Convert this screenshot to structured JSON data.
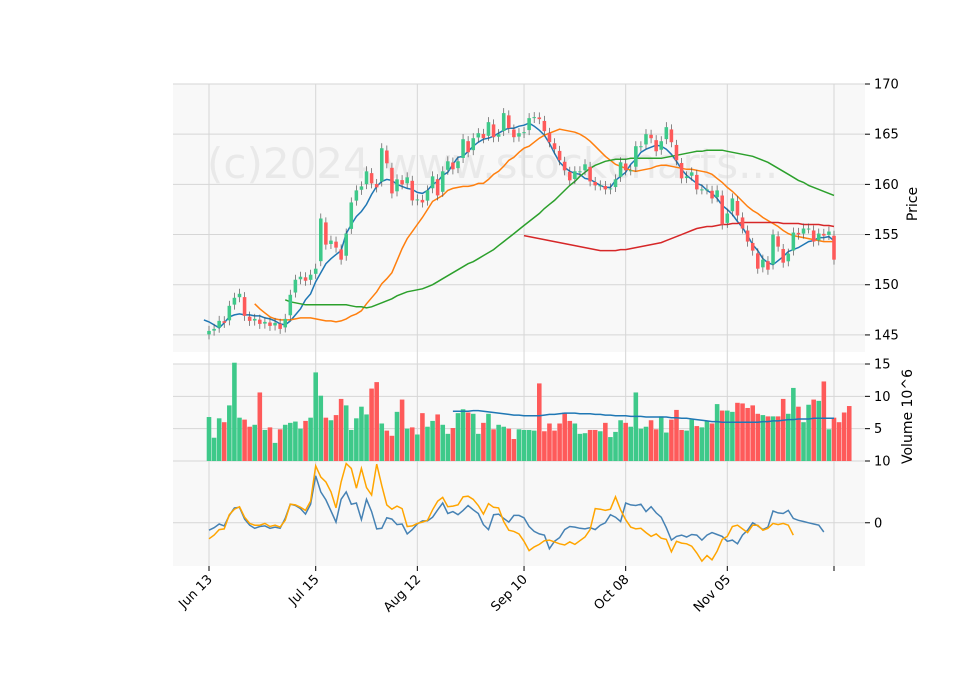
{
  "watermark": "(c)2024 www.stockcharts...",
  "colors": {
    "up": "#3ec98a",
    "down": "#fe5a5a",
    "sma5": "#1f77b4",
    "sma10": "#ff7f0e",
    "sma30": "#2ca02c",
    "sma120": "#d62728",
    "macd": "#4682b4",
    "signal": "#ffa500",
    "panel_bg": "#f8f8f8",
    "grid": "#d6d6d6"
  },
  "chart_data": [
    {
      "type": "candlestick",
      "panel": "price",
      "ylabel": "Price",
      "ylim": [
        143.3,
        170
      ],
      "yticks": [
        145,
        150,
        155,
        160,
        165,
        170
      ],
      "grid": true,
      "x_tick_labels": [
        "Jun 13",
        "Jul 15",
        "Aug 12",
        "Sep 10",
        "Oct 08",
        "Nov 05",
        ""
      ],
      "x_tick_index": [
        0,
        21,
        41,
        62,
        82,
        102,
        123
      ],
      "close": [
        145.4,
        145.6,
        146.4,
        146.2,
        147.9,
        148.7,
        149.1,
        146.9,
        146.4,
        146.6,
        146.1,
        146.3,
        145.9,
        146.2,
        145.6,
        146.6,
        149.0,
        150.5,
        150.8,
        150.4,
        151.0,
        151.6,
        156.6,
        154.0,
        154.4,
        153.7,
        152.5,
        155.1,
        158.2,
        159.4,
        159.8,
        161.3,
        160.1,
        159.7,
        163.6,
        162.1,
        159.1,
        160.5,
        160.0,
        160.7,
        158.4,
        158.5,
        158.2,
        159.4,
        160.8,
        158.9,
        161.3,
        162.3,
        161.5,
        162.3,
        164.5,
        163.2,
        164.6,
        165.1,
        164.6,
        166.2,
        164.7,
        165.0,
        167.1,
        165.6,
        164.7,
        165.1,
        165.2,
        166.6,
        166.7,
        166.5,
        165.3,
        164.2,
        163.5,
        162.4,
        161.4,
        160.4,
        161.3,
        161.3,
        162.0,
        160.3,
        159.9,
        159.9,
        159.5,
        159.6,
        160.5,
        162.2,
        161.4,
        161.4,
        163.8,
        163.8,
        165.0,
        164.6,
        163.3,
        164.3,
        165.7,
        164.2,
        162.4,
        160.6,
        160.8,
        161.2,
        159.5,
        159.5,
        159.5,
        158.6,
        159.4,
        156.0,
        157.1,
        158.6,
        156.9,
        155.6,
        154.3,
        153.4,
        151.6,
        152.5,
        151.5,
        155.0,
        153.8,
        152.2,
        153.1,
        155.2,
        155.0,
        155.6,
        155.6,
        154.3,
        155.1,
        154.9,
        155.3,
        152.5
      ],
      "volume_millions": [
        6.8,
        3.6,
        6.6,
        6.0,
        8.6,
        15.2,
        6.7,
        6.4,
        5.3,
        5.6,
        10.6,
        4.8,
        5.2,
        2.8,
        4.9,
        5.6,
        5.9,
        6.1,
        5.0,
        6.2,
        6.7,
        13.7,
        10.1,
        6.7,
        6.3,
        7.1,
        9.6,
        8.6,
        4.8,
        6.6,
        8.4,
        7.2,
        11.2,
        12.2,
        5.8,
        4.7,
        3.9,
        7.6,
        9.5,
        5.0,
        5.2,
        4.1,
        7.4,
        5.3,
        6.2,
        7.2,
        5.6,
        4.2,
        5.1,
        7.4,
        8.0,
        7.5,
        7.3,
        4.2,
        5.9,
        7.3,
        4.9,
        5.6,
        5.3,
        5.0,
        3.4,
        4.9,
        4.8,
        4.8,
        4.7,
        12.0,
        4.6,
        5.8,
        4.7,
        5.8,
        7.5,
        6.2,
        5.8,
        4.2,
        4.3,
        4.8,
        4.8,
        4.6,
        5.9,
        3.7,
        4.5,
        6.3,
        5.9,
        5.3,
        10.6,
        5.0,
        5.3,
        6.3,
        4.9,
        6.9,
        4.4,
        6.4,
        7.9,
        4.8,
        4.7,
        6.4,
        5.4,
        5.2,
        6.2,
        5.8,
        8.8,
        7.8,
        7.8,
        7.6,
        9.0,
        8.9,
        8.2,
        8.6,
        7.3,
        7.1,
        6.9,
        6.9,
        6.9,
        9.6,
        7.3,
        11.3,
        8.4,
        6.0,
        8.7,
        9.5,
        9.3,
        12.3,
        4.9,
        6.7,
        6.0,
        7.5,
        8.5
      ],
      "series": [
        {
          "name": "",
          "key": "sma5",
          "values": [
            146.5,
            146.3,
            146.0,
            145.7,
            146.2,
            146.8,
            147.0,
            147.1,
            147.0,
            147.0,
            146.9,
            146.9,
            146.7,
            146.6,
            146.4,
            146.1,
            146.0,
            146.4,
            147.0,
            147.6,
            148.5,
            149.1,
            150.3,
            151.2,
            152.1,
            152.6,
            153.0,
            153.4,
            155.1,
            156.0,
            156.8,
            157.3,
            158.0,
            159.0,
            159.8,
            160.3,
            160.5,
            160.4,
            160.0,
            159.8,
            159.6,
            159.5,
            159.2,
            159.1,
            159.4,
            160.0,
            160.3,
            160.9,
            161.2,
            162.0,
            162.7,
            162.8,
            163.3,
            163.8,
            164.2,
            164.5,
            164.6,
            164.8,
            165.1,
            165.4,
            165.6,
            165.6,
            165.8,
            165.9,
            166.1,
            165.8,
            165.4,
            164.9,
            164.1,
            163.1,
            162.2,
            161.7,
            161.3,
            161.1,
            161.0,
            160.6,
            160.5,
            160.2,
            159.9,
            159.7,
            159.7,
            160.4,
            160.8,
            161.2,
            162.0,
            162.5,
            163.2,
            163.5,
            163.7,
            163.9,
            163.8,
            163.5,
            163.0,
            162.3,
            161.5,
            160.9,
            160.5,
            160.1,
            159.9,
            159.4,
            159.1,
            158.6,
            157.9,
            157.5,
            157.0,
            156.3,
            155.7,
            154.9,
            154.0,
            153.4,
            152.6,
            152.2,
            152.0,
            152.4,
            152.8,
            153.3,
            153.5,
            153.7,
            154.0,
            154.3,
            154.4,
            154.7,
            154.7,
            154.8,
            154.4
          ]
        },
        {
          "name": "",
          "key": "sma10",
          "values": [
            148.1,
            147.6,
            147.2,
            146.8,
            146.6,
            146.5,
            146.5,
            146.5,
            146.6,
            146.7,
            146.7,
            146.7,
            146.6,
            146.5,
            146.4,
            146.4,
            146.3,
            146.4,
            146.6,
            146.9,
            147.1,
            147.4,
            148.1,
            148.7,
            149.3,
            150.1,
            150.6,
            151.2,
            152.4,
            153.6,
            154.6,
            155.3,
            156.0,
            156.7,
            157.5,
            158.3,
            158.6,
            158.9,
            159.4,
            159.6,
            159.7,
            159.8,
            159.8,
            159.9,
            160.1,
            160.1,
            160.5,
            161.0,
            161.3,
            161.8,
            162.4,
            162.7,
            163.2,
            163.6,
            163.8,
            164.2,
            164.6,
            164.9,
            165.1,
            165.3,
            165.5,
            165.4,
            165.3,
            165.2,
            165.0,
            164.7,
            164.3,
            163.8,
            163.3,
            162.8,
            162.4,
            162.0,
            161.8,
            161.6,
            161.4,
            161.3,
            161.4,
            161.5,
            161.6,
            161.8,
            161.9,
            161.9,
            161.8,
            161.7,
            161.6,
            161.5,
            161.5,
            161.4,
            161.3,
            161.2,
            161.0,
            160.6,
            160.2,
            159.7,
            159.3,
            158.8,
            158.3,
            157.8,
            157.4,
            157.1,
            156.7,
            156.4,
            156.1,
            155.8,
            155.4,
            155.1,
            154.9,
            154.8,
            154.7,
            154.6,
            154.5,
            154.4,
            154.3,
            154.3,
            154.3
          ]
        },
        {
          "name": "",
          "key": "sma30",
          "values": [
            148.5,
            148.3,
            148.2,
            148.1,
            148.0,
            148.0,
            148.0,
            148.0,
            148.0,
            148.0,
            148.0,
            148.0,
            148.0,
            147.9,
            147.8,
            147.8,
            147.7,
            147.8,
            148.0,
            148.2,
            148.4,
            148.6,
            148.9,
            149.1,
            149.3,
            149.4,
            149.5,
            149.6,
            149.8,
            150.0,
            150.3,
            150.6,
            150.9,
            151.2,
            151.5,
            151.8,
            152.1,
            152.3,
            152.6,
            152.9,
            153.2,
            153.5,
            153.9,
            154.3,
            154.7,
            155.1,
            155.5,
            155.9,
            156.3,
            156.7,
            157.1,
            157.6,
            158.0,
            158.4,
            158.9,
            159.4,
            159.9,
            160.3,
            160.8,
            161.2,
            161.6,
            161.9,
            162.1,
            162.3,
            162.4,
            162.5,
            162.5,
            162.5,
            162.6,
            162.6,
            162.6,
            162.6,
            162.6,
            162.6,
            162.6,
            162.7,
            162.8,
            162.9,
            163.0,
            163.1,
            163.2,
            163.3,
            163.3,
            163.4,
            163.4,
            163.4,
            163.4,
            163.3,
            163.2,
            163.1,
            163.0,
            162.9,
            162.8,
            162.6,
            162.4,
            162.2,
            161.9,
            161.6,
            161.3,
            161.0,
            160.7,
            160.4,
            160.2,
            159.9,
            159.7,
            159.5,
            159.3,
            159.1,
            158.9
          ]
        },
        {
          "name": "",
          "key": "sma120",
          "values": [
            154.9,
            154.8,
            154.7,
            154.6,
            154.5,
            154.4,
            154.3,
            154.2,
            154.1,
            154.0,
            153.9,
            153.8,
            153.7,
            153.6,
            153.5,
            153.4,
            153.4,
            153.4,
            153.4,
            153.5,
            153.5,
            153.6,
            153.7,
            153.8,
            153.9,
            154.0,
            154.1,
            154.2,
            154.4,
            154.6,
            154.8,
            155.0,
            155.2,
            155.4,
            155.6,
            155.7,
            155.8,
            155.8,
            155.9,
            156.0,
            156.0,
            156.1,
            156.1,
            156.2,
            156.2,
            156.2,
            156.2,
            156.2,
            156.2,
            156.2,
            156.2,
            156.1,
            156.1,
            156.1,
            156.1,
            156.0,
            156.0,
            156.0,
            156.0,
            155.9,
            155.9,
            155.8
          ]
        },
        {
          "name": "",
          "key": "volume_avg",
          "panel": "volume",
          "values": [
            7.7,
            7.7,
            7.7,
            7.7,
            7.8,
            7.8,
            7.7,
            7.6,
            7.5,
            7.4,
            7.3,
            7.2,
            7.1,
            7.1,
            7.0,
            7.0,
            7.0,
            7.0,
            7.1,
            7.2,
            7.2,
            7.3,
            7.4,
            7.4,
            7.4,
            7.3,
            7.3,
            7.3,
            7.2,
            7.2,
            7.1,
            7.1,
            7.0,
            7.0,
            7.0,
            6.9,
            6.9,
            6.9,
            6.8,
            6.8,
            6.8,
            6.8,
            6.8,
            6.7,
            6.7,
            6.6,
            6.6,
            6.5,
            6.4,
            6.3,
            6.2,
            6.1,
            6.1,
            6.0,
            6.0,
            6.0,
            6.0,
            6.0,
            6.0,
            6.0,
            6.0,
            6.1,
            6.1,
            6.2,
            6.2,
            6.3,
            6.4,
            6.4,
            6.5,
            6.5,
            6.5,
            6.6,
            6.6,
            6.6,
            6.6,
            6.6
          ]
        }
      ]
    },
    {
      "type": "bar",
      "panel": "volume",
      "ylabel": "Volume  10^6",
      "ylim": [
        0,
        15
      ],
      "yticks": [
        5,
        10,
        15
      ]
    },
    {
      "type": "line",
      "panel": "macd",
      "ylim": [
        -7,
        10
      ],
      "yticks": [
        0,
        10
      ],
      "series": [
        {
          "name": "",
          "key": "macd",
          "values": [
            -1.2,
            -0.8,
            -0.2,
            -0.5,
            1.2,
            2.4,
            2.5,
            0.6,
            -0.4,
            -0.9,
            -0.6,
            -0.5,
            -0.9,
            -0.7,
            -0.9,
            0.7,
            3.0,
            2.8,
            2.3,
            1.4,
            3.0,
            7.6,
            5.0,
            3.7,
            1.9,
            0.1,
            3.8,
            5.0,
            3.0,
            3.2,
            0.5,
            3.8,
            1.8,
            -1.0,
            -0.9,
            0.8,
            0.6,
            -0.3,
            -0.2,
            -1.8,
            -1.1,
            -0.2,
            0.3,
            0.3,
            0.9,
            2.1,
            3.2,
            1.5,
            1.8,
            1.3,
            2.0,
            2.8,
            2.1,
            1.5,
            -0.3,
            -1.1,
            1.3,
            1.4,
            0.7,
            0.1,
            1.2,
            1.2,
            0.8,
            -0.6,
            -1.4,
            -1.8,
            -2.0,
            -4.2,
            -3.0,
            -2.4,
            -1.1,
            -0.6,
            -0.7,
            -0.9,
            -1.0,
            -0.8,
            -1.1,
            -0.4,
            0.0,
            1.3,
            0.9,
            0.2,
            3.2,
            2.9,
            2.8,
            3.0,
            1.8,
            2.6,
            1.6,
            0.9,
            -0.8,
            -2.8,
            -2.2,
            -2.0,
            -2.3,
            -1.9,
            -2.0,
            -2.8,
            -2.0,
            -1.6,
            -1.9,
            -2.2,
            -3.0,
            -2.8,
            -3.4,
            -2.0,
            -1.2,
            0.0,
            -0.5,
            -1.1,
            -0.7,
            1.9,
            1.6,
            1.5,
            2.0,
            0.7,
            0.4,
            0.2,
            0.0,
            -0.2,
            -0.4,
            -1.5
          ]
        },
        {
          "name": "",
          "key": "signal",
          "values": [
            -2.6,
            -2.0,
            -1.1,
            -1.0,
            1.3,
            2.2,
            2.6,
            0.9,
            -0.1,
            -0.4,
            -0.4,
            -0.1,
            -0.6,
            -0.4,
            -0.7,
            0.4,
            3.0,
            2.9,
            2.5,
            2.0,
            3.5,
            9.2,
            7.4,
            6.6,
            5.0,
            2.4,
            6.6,
            9.6,
            8.8,
            5.6,
            8.8,
            5.7,
            4.5,
            9.5,
            6.0,
            2.9,
            2.2,
            2.7,
            2.3,
            -0.6,
            -0.5,
            -0.1,
            0.1,
            0.4,
            2.1,
            3.5,
            4.1,
            2.6,
            2.7,
            2.9,
            4.2,
            4.3,
            3.8,
            2.8,
            1.4,
            3.1,
            2.5,
            2.4,
            0.2,
            -1.2,
            -1.4,
            -1.8,
            -3.0,
            -4.5,
            -3.9,
            -3.5,
            -2.9,
            -2.8,
            -3.1,
            -3.4,
            -3.6,
            -3.1,
            -3.5,
            -2.9,
            -2.3,
            -1.1,
            2.3,
            2.2,
            2.0,
            2.2,
            4.2,
            2.1,
            0.5,
            -0.7,
            -1.0,
            -0.9,
            -1.6,
            -2.2,
            -1.8,
            -2.5,
            -2.7,
            -4.7,
            -3.0,
            -3.3,
            -3.4,
            -3.8,
            -4.9,
            -6.2,
            -5.3,
            -6.0,
            -4.6,
            -2.7,
            -2.2,
            -0.6,
            -0.4,
            -1.0,
            -1.6,
            -0.4,
            -0.4,
            -1.2,
            -0.9,
            -0.1,
            -0.3,
            -0.1,
            -0.4,
            -2.0
          ]
        }
      ]
    }
  ]
}
